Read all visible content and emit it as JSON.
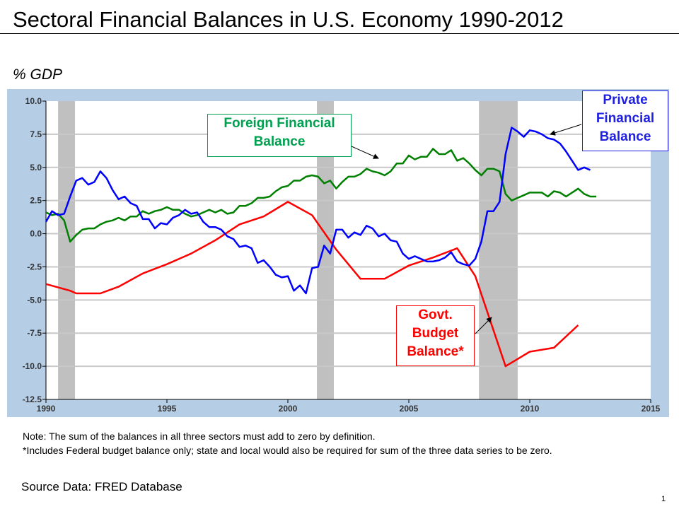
{
  "title": "Sectoral Financial Balances in U.S. Economy 1990-2012",
  "notes": [
    "Note: The sum of the balances in all three sectors must add to zero by definition.",
    "*Includes Federal budget balance only; state and local would also be required for sum of the three data series to be zero."
  ],
  "source": "Source Data:  FRED Database",
  "page_number": "1",
  "chart_data": {
    "type": "line",
    "title": "Sectoral Financial Balances in U.S. Economy 1990-2012",
    "ylabel": "% GDP",
    "xlabel": "",
    "xlim": [
      1990,
      2015
    ],
    "ylim": [
      -12.5,
      10.0
    ],
    "xticks": [
      "1990",
      "1995",
      "2000",
      "2005",
      "2010",
      "2015"
    ],
    "yticks": [
      "10.0",
      "7.5",
      "5.0",
      "2.5",
      "0.0",
      "-2.5",
      "-5.0",
      "-7.5",
      "-10.0",
      "-12.5"
    ],
    "grid": true,
    "colors": {
      "frame": "#b5cde5",
      "recession": "#c0c0c0",
      "private": "#0000ff",
      "foreign": "#008000",
      "govt": "#ff0000"
    },
    "recessions": [
      [
        1990.5,
        1991.2
      ],
      [
        2001.2,
        2001.9
      ],
      [
        2007.9,
        2009.5
      ]
    ],
    "series": [
      {
        "name": "Private Financial Balance",
        "label": [
          "Private",
          "Financial",
          "Balance"
        ],
        "color": "#0000ff",
        "x": [
          1990,
          1990.25,
          1990.5,
          1990.75,
          1991,
          1991.25,
          1991.5,
          1991.75,
          1992,
          1992.25,
          1992.5,
          1992.75,
          1993,
          1993.25,
          1993.5,
          1993.75,
          1994,
          1994.25,
          1994.5,
          1994.75,
          1995,
          1995.25,
          1995.5,
          1995.75,
          1996,
          1996.25,
          1996.5,
          1996.75,
          1997,
          1997.25,
          1997.5,
          1997.75,
          1998,
          1998.25,
          1998.5,
          1998.75,
          1999,
          1999.25,
          1999.5,
          1999.75,
          2000,
          2000.25,
          2000.5,
          2000.75,
          2001,
          2001.25,
          2001.5,
          2001.75,
          2002,
          2002.25,
          2002.5,
          2002.75,
          2003,
          2003.25,
          2003.5,
          2003.75,
          2004,
          2004.25,
          2004.5,
          2004.75,
          2005,
          2005.25,
          2005.5,
          2005.75,
          2006,
          2006.25,
          2006.5,
          2006.75,
          2007,
          2007.25,
          2007.5,
          2007.75,
          2008,
          2008.25,
          2008.5,
          2008.75,
          2009,
          2009.25,
          2009.5,
          2009.75,
          2010,
          2010.25,
          2010.5,
          2010.75,
          2011,
          2011.25,
          2011.5,
          2011.75,
          2012,
          2012.25,
          2012.5
        ],
        "values": [
          0.9,
          1.7,
          1.4,
          1.5,
          2.8,
          4.0,
          4.2,
          3.7,
          3.9,
          4.7,
          4.2,
          3.3,
          2.6,
          2.8,
          2.3,
          2.1,
          1.1,
          1.1,
          0.4,
          0.8,
          0.7,
          1.2,
          1.4,
          1.8,
          1.5,
          1.6,
          0.9,
          0.5,
          0.5,
          0.3,
          -0.2,
          -0.4,
          -1.0,
          -0.9,
          -1.1,
          -2.2,
          -2.0,
          -2.5,
          -3.1,
          -3.3,
          -3.2,
          -4.3,
          -3.9,
          -4.5,
          -2.6,
          -2.5,
          -0.9,
          -1.5,
          0.3,
          0.3,
          -0.3,
          0.1,
          -0.1,
          0.6,
          0.4,
          -0.2,
          0.0,
          -0.5,
          -0.6,
          -1.5,
          -1.9,
          -1.7,
          -1.9,
          -2.1,
          -2.1,
          -2.0,
          -1.8,
          -1.4,
          -2.1,
          -2.3,
          -2.4,
          -1.9,
          -0.6,
          1.7,
          1.7,
          2.4,
          6.0,
          8.0,
          7.7,
          7.3,
          7.8,
          7.7,
          7.5,
          7.2,
          7.1,
          6.8,
          6.2,
          5.5,
          4.8,
          5.0,
          4.8
        ]
      },
      {
        "name": "Foreign Financial Balance",
        "label": [
          "Foreign Financial",
          "Balance"
        ],
        "color": "#008000",
        "x": [
          1990,
          1990.25,
          1990.5,
          1990.75,
          1991,
          1991.25,
          1991.5,
          1991.75,
          1992,
          1992.25,
          1992.5,
          1992.75,
          1993,
          1993.25,
          1993.5,
          1993.75,
          1994,
          1994.25,
          1994.5,
          1994.75,
          1995,
          1995.25,
          1995.5,
          1995.75,
          1996,
          1996.25,
          1996.5,
          1996.75,
          1997,
          1997.25,
          1997.5,
          1997.75,
          1998,
          1998.25,
          1998.5,
          1998.75,
          1999,
          1999.25,
          1999.5,
          1999.75,
          2000,
          2000.25,
          2000.5,
          2000.75,
          2001,
          2001.25,
          2001.5,
          2001.75,
          2002,
          2002.25,
          2002.5,
          2002.75,
          2003,
          2003.25,
          2003.5,
          2003.75,
          2004,
          2004.25,
          2004.5,
          2004.75,
          2005,
          2005.25,
          2005.5,
          2005.75,
          2006,
          2006.25,
          2006.5,
          2006.75,
          2007,
          2007.25,
          2007.5,
          2007.75,
          2008,
          2008.25,
          2008.5,
          2008.75,
          2009,
          2009.25,
          2009.5,
          2009.75,
          2010,
          2010.25,
          2010.5,
          2010.75,
          2011,
          2011.25,
          2011.5,
          2011.75,
          2012,
          2012.25,
          2012.5,
          2012.75
        ],
        "values": [
          1.6,
          1.4,
          1.5,
          1.0,
          -0.6,
          -0.1,
          0.3,
          0.4,
          0.4,
          0.7,
          0.9,
          1.0,
          1.2,
          1.0,
          1.3,
          1.3,
          1.7,
          1.5,
          1.7,
          1.8,
          2.0,
          1.8,
          1.8,
          1.5,
          1.3,
          1.4,
          1.6,
          1.8,
          1.6,
          1.8,
          1.5,
          1.6,
          2.1,
          2.1,
          2.3,
          2.7,
          2.7,
          2.8,
          3.2,
          3.5,
          3.6,
          4.0,
          4.0,
          4.3,
          4.4,
          4.3,
          3.8,
          4.0,
          3.4,
          3.9,
          4.3,
          4.3,
          4.5,
          4.9,
          4.7,
          4.6,
          4.4,
          4.7,
          5.3,
          5.3,
          5.9,
          5.6,
          5.8,
          5.8,
          6.4,
          6.0,
          6.0,
          6.3,
          5.5,
          5.7,
          5.3,
          4.8,
          4.4,
          4.9,
          4.9,
          4.7,
          3.0,
          2.5,
          2.7,
          2.9,
          3.1,
          3.1,
          3.1,
          2.8,
          3.2,
          3.1,
          2.8,
          3.1,
          3.4,
          3.0,
          2.8,
          2.8
        ]
      },
      {
        "name": "Govt. Budget Balance*",
        "label": [
          "Govt.",
          "Budget",
          "Balance*"
        ],
        "color": "#ff0000",
        "x": [
          1990,
          1991,
          1991.25,
          1992,
          1992.25,
          1993,
          1994,
          1995,
          1996,
          1997,
          1998,
          1999,
          2000,
          2001,
          2002,
          2003,
          2004,
          2005,
          2006,
          2007,
          2007.75,
          2009,
          2010,
          2011,
          2012
        ],
        "values": [
          -3.8,
          -4.3,
          -4.5,
          -4.5,
          -4.5,
          -4.0,
          -3.0,
          -2.3,
          -1.5,
          -0.5,
          0.7,
          1.3,
          2.4,
          1.4,
          -1.2,
          -3.4,
          -3.4,
          -2.4,
          -1.8,
          -1.1,
          -3.2,
          -10.0,
          -8.9,
          -8.6,
          -6.9
        ]
      }
    ]
  }
}
